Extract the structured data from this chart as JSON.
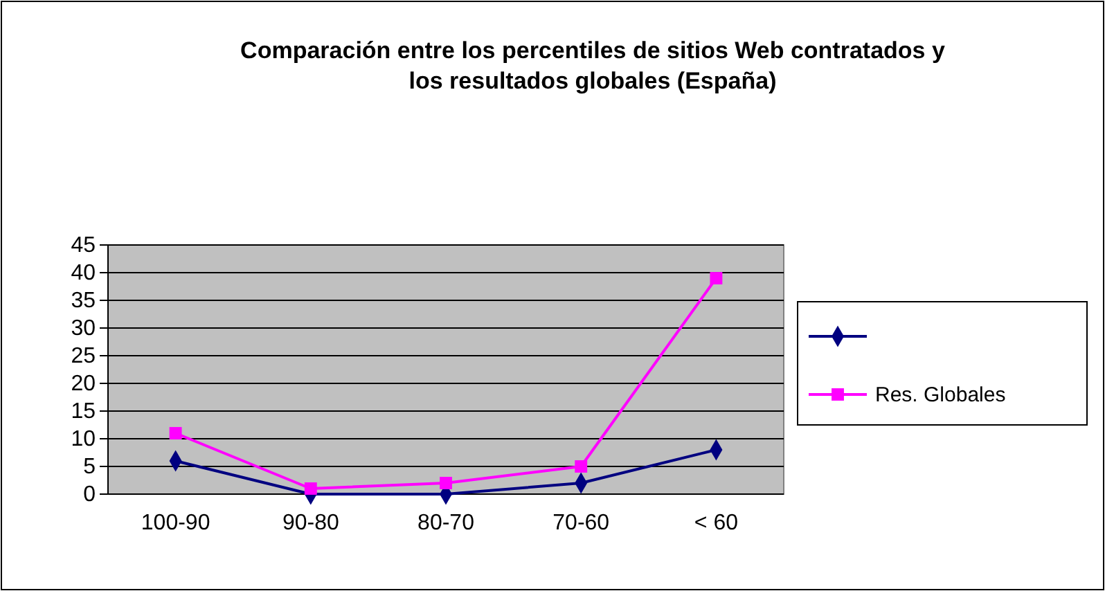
{
  "chart_data": {
    "type": "line",
    "title": "Comparación entre los percentiles de sitios Web contratados y los resultados globales (España)",
    "categories": [
      "100-90",
      "90-80",
      "80-70",
      "70-60",
      "< 60"
    ],
    "series": [
      {
        "color": "#000080",
        "marker": "diamond",
        "values": [
          6,
          0,
          0,
          2,
          8
        ]
      },
      {
        "name": "Res. Globales",
        "color": "#ff00ff",
        "marker": "square",
        "values": [
          11,
          1,
          2,
          5,
          39
        ]
      }
    ],
    "ylim": [
      0,
      45
    ],
    "yticks": [
      0,
      5,
      10,
      15,
      20,
      25,
      30,
      35,
      40,
      45
    ],
    "grid": "y",
    "legend": "right"
  }
}
